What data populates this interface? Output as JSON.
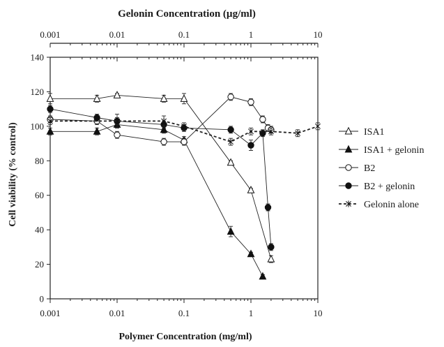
{
  "chart_data": {
    "type": "line",
    "title": "Gelonin Concentration (µg/ml)",
    "xlabel": "Polymer Concentration (mg/ml)",
    "ylabel": "Cell viability (% control)",
    "x_scale": "log",
    "xlim": [
      0.001,
      10
    ],
    "ylim": [
      0,
      140
    ],
    "x_ticks": [
      "0.001",
      "0.01",
      "0.1",
      "1",
      "10"
    ],
    "y_ticks": [
      "0",
      "20",
      "40",
      "60",
      "80",
      "100",
      "120",
      "140"
    ],
    "top_axis": {
      "label": "Gelonin Concentration (µg/ml)",
      "ticks": [
        "0.001",
        "0.01",
        "0.1",
        "1",
        "10"
      ]
    },
    "grid": false,
    "legend_position": "right",
    "series": [
      {
        "name": "ISA1",
        "marker": "open-triangle",
        "line": "solid",
        "x": [
          0.001,
          0.005,
          0.01,
          0.05,
          0.1,
          0.5,
          1,
          2
        ],
        "y": [
          116,
          116,
          118,
          116,
          116,
          79,
          63,
          23
        ],
        "err": [
          3,
          2,
          1,
          2,
          3,
          1,
          1,
          2
        ]
      },
      {
        "name": "ISA1 + gelonin",
        "marker": "filled-triangle",
        "line": "solid",
        "x": [
          0.001,
          0.005,
          0.01,
          0.05,
          0.1,
          0.5,
          1,
          1.5
        ],
        "y": [
          97,
          97,
          101,
          98,
          92,
          39,
          26,
          13
        ],
        "err": [
          2,
          2,
          2,
          2,
          2,
          3,
          1,
          1
        ]
      },
      {
        "name": "B2",
        "marker": "open-circle",
        "line": "solid",
        "x": [
          0.001,
          0.005,
          0.01,
          0.05,
          0.1,
          0.5,
          1,
          1.5,
          1.8,
          2
        ],
        "y": [
          104,
          103,
          95,
          91,
          91,
          117,
          114,
          104,
          99,
          98
        ],
        "err": [
          2,
          2,
          2,
          2,
          2,
          2,
          2,
          2,
          2,
          2
        ]
      },
      {
        "name": "B2 + gelonin",
        "marker": "filled-circle",
        "line": "solid",
        "x": [
          0.001,
          0.005,
          0.01,
          0.05,
          0.1,
          0.5,
          1,
          1.5,
          1.8,
          2
        ],
        "y": [
          110,
          105,
          103,
          101,
          99,
          98,
          89,
          96,
          53,
          30
        ],
        "err": [
          2,
          2,
          2,
          2,
          2,
          2,
          3,
          2,
          2,
          2
        ]
      },
      {
        "name": "Gelonin alone",
        "marker": "star",
        "line": "dashed",
        "x": [
          0.001,
          0.01,
          0.05,
          0.1,
          0.5,
          1,
          2,
          5,
          10
        ],
        "y": [
          103,
          103,
          103,
          100,
          91,
          97,
          97,
          96,
          100
        ],
        "err": [
          2,
          4,
          3,
          2,
          2,
          2,
          2,
          2,
          2
        ]
      }
    ]
  }
}
